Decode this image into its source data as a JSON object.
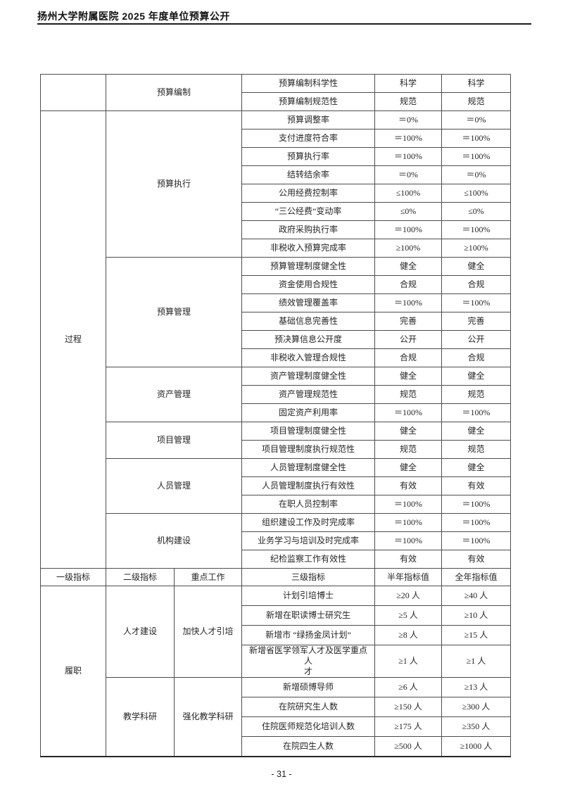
{
  "header": {
    "title": "扬州大学附属医院 2025 年度单位预算公开"
  },
  "footer": {
    "page_number": "- 31 -"
  },
  "table": {
    "column_headers": [
      "一级指标",
      "二级指标",
      "重点工作",
      "三级指标",
      "半年指标值",
      "全年指标值"
    ],
    "upper": {
      "level1": "过程",
      "sections": [
        {
          "level2": "预算编制",
          "rows": [
            [
              "预算编制科学性",
              "科学",
              "科学"
            ],
            [
              "预算编制规范性",
              "规范",
              "规范"
            ]
          ]
        },
        {
          "level2": "预算执行",
          "rows": [
            [
              "预算调整率",
              "＝0%",
              "＝0%"
            ],
            [
              "支付进度符合率",
              "＝100%",
              "＝100%"
            ],
            [
              "预算执行率",
              "＝100%",
              "＝100%"
            ],
            [
              "结转结余率",
              "＝0%",
              "＝0%"
            ],
            [
              "公用经费控制率",
              "≤100%",
              "≤100%"
            ],
            [
              "“三公经费”变动率",
              "≤0%",
              "≤0%"
            ],
            [
              "政府采购执行率",
              "＝100%",
              "＝100%"
            ],
            [
              "非税收入预算完成率",
              "≥100%",
              "≥100%"
            ]
          ]
        },
        {
          "level2": "预算管理",
          "rows": [
            [
              "预算管理制度健全性",
              "健全",
              "健全"
            ],
            [
              "资金使用合规性",
              "合规",
              "合规"
            ],
            [
              "绩效管理覆盖率",
              "＝100%",
              "＝100%"
            ],
            [
              "基础信息完善性",
              "完善",
              "完善"
            ],
            [
              "预决算信息公开度",
              "公开",
              "公开"
            ],
            [
              "非税收入管理合规性",
              "合规",
              "合规"
            ]
          ]
        },
        {
          "level2": "资产管理",
          "rows": [
            [
              "资产管理制度健全性",
              "健全",
              "健全"
            ],
            [
              "资产管理规范性",
              "规范",
              "规范"
            ],
            [
              "固定资产利用率",
              "＝100%",
              "＝100%"
            ]
          ]
        },
        {
          "level2": "项目管理",
          "rows": [
            [
              "项目管理制度健全性",
              "健全",
              "健全"
            ],
            [
              "项目管理制度执行规范性",
              "规范",
              "规范"
            ]
          ]
        },
        {
          "level2": "人员管理",
          "rows": [
            [
              "人员管理制度健全性",
              "健全",
              "健全"
            ],
            [
              "人员管理制度执行有效性",
              "有效",
              "有效"
            ],
            [
              "在职人员控制率",
              "＝100%",
              "＝100%"
            ]
          ]
        },
        {
          "level2": "机构建设",
          "rows": [
            [
              "组织建设工作及时完成率",
              "＝100%",
              "＝100%"
            ],
            [
              "业务学习与培训及时完成率",
              "＝100%",
              "＝100%"
            ],
            [
              "纪检监察工作有效性",
              "有效",
              "有效"
            ]
          ]
        }
      ]
    },
    "lower": {
      "level1": "履职",
      "sections": [
        {
          "level2": "人才建设",
          "focus": "加快人才引培",
          "rows": [
            [
              "计划引培博士",
              "≥20 人",
              "≥40 人"
            ],
            [
              "新增在职读博士研究生",
              "≥5 人",
              "≥10 人"
            ],
            [
              "新增市 “绿扬金凤计划”",
              "≥8 人",
              "≥15 人"
            ],
            [
              "新增省医学领军人才及医学重点\n人\n才",
              "≥1 人",
              "≥1 人"
            ]
          ]
        },
        {
          "level2": "教学科研",
          "focus": "强化教学科研",
          "rows": [
            [
              "新增硕博导师",
              "≥6 人",
              "≥13 人"
            ],
            [
              "在院研究生人数",
              "≥150 人",
              "≥300 人"
            ],
            [
              "住院医师规范化培训人数",
              "≥175 人",
              "≥350 人"
            ],
            [
              "在院四生人数",
              "≥500 人",
              "≥1000 人"
            ]
          ]
        }
      ]
    }
  }
}
